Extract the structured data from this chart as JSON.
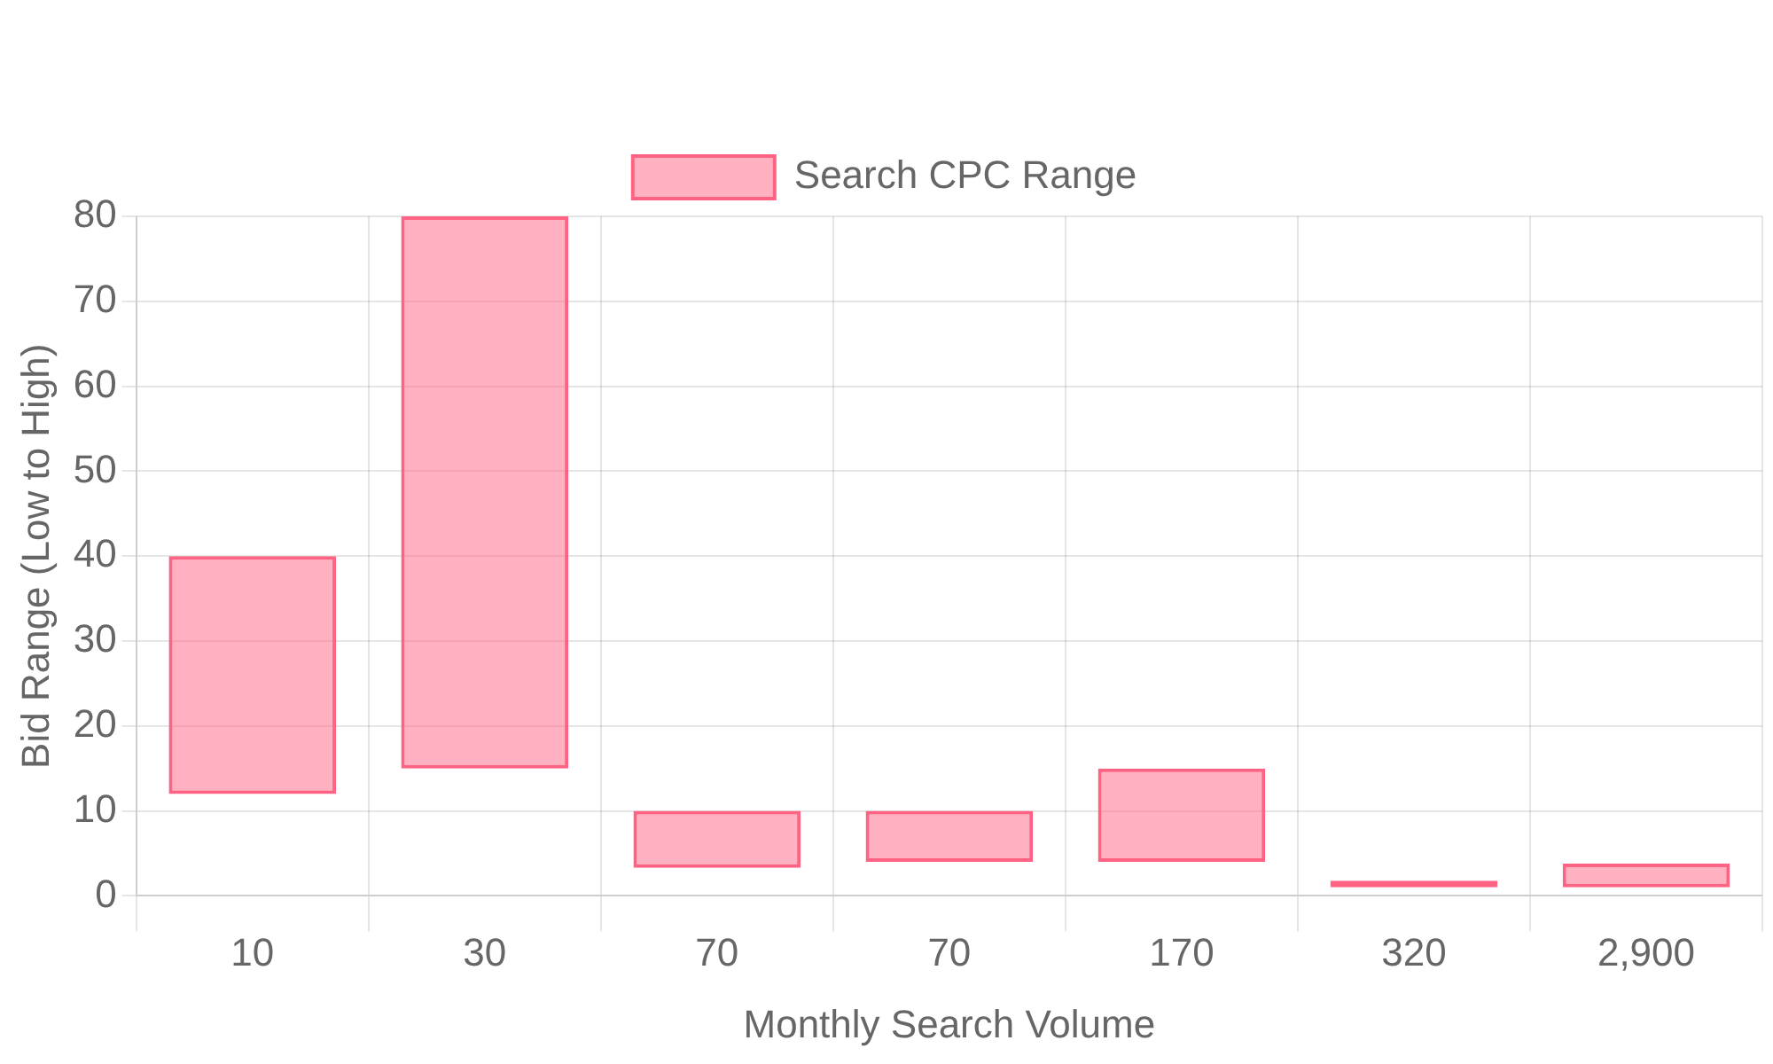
{
  "chart_data": {
    "type": "bar",
    "xlabel": "Monthly Search Volume",
    "ylabel": "Bid Range (Low to High)",
    "categories": [
      "10",
      "30",
      "70",
      "70",
      "170",
      "320",
      "2,900"
    ],
    "series": [
      {
        "name": "Search CPC Range",
        "color": "#ff6384",
        "values": [
          28,
          65,
          6.7,
          6,
          11,
          0.8,
          2.8
        ],
        "base": [
          12,
          15,
          3.3,
          4,
          4,
          1,
          1
        ]
      }
    ],
    "ylim": [
      0,
      80
    ],
    "yticks": [
      0,
      10,
      20,
      30,
      40,
      50,
      60,
      70,
      80
    ],
    "grid": true,
    "legend": "top"
  }
}
